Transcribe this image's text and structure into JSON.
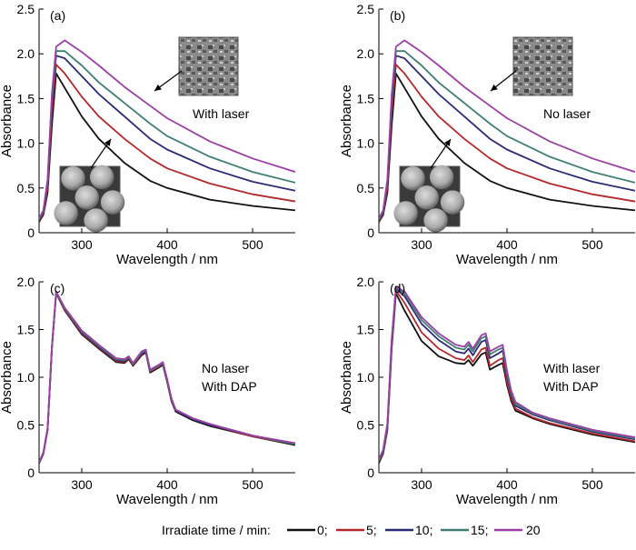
{
  "legend": {
    "title": "Irradiate time / min:",
    "entries": [
      {
        "label": "0;",
        "color": "#111111"
      },
      {
        "label": "5;",
        "color": "#b3282b"
      },
      {
        "label": "10;",
        "color": "#2b2a78"
      },
      {
        "label": "15;",
        "color": "#3f7f73"
      },
      {
        "label": "20",
        "color": "#9b3fa6"
      }
    ]
  },
  "chart_data": [
    {
      "panel": "(a)",
      "type": "line",
      "xlabel": "Wavelength / nm",
      "ylabel": "Absorbance",
      "xlim": [
        250,
        550
      ],
      "ylim": [
        0,
        2.5
      ],
      "xticks": [
        300,
        400,
        500
      ],
      "yticks": [
        0,
        0.5,
        1.0,
        1.5,
        2.0,
        2.5
      ],
      "annotations": [
        "With laser"
      ],
      "inset_images": [
        "sem-porous-surface",
        "sem-sphere-array"
      ],
      "x": [
        250,
        255,
        260,
        265,
        270,
        280,
        300,
        320,
        350,
        380,
        400,
        450,
        500,
        550
      ],
      "series": [
        {
          "name": "0",
          "color": "#111111",
          "values": [
            0.12,
            0.2,
            0.45,
            1.2,
            1.78,
            1.62,
            1.3,
            1.05,
            0.78,
            0.58,
            0.5,
            0.37,
            0.3,
            0.25
          ]
        },
        {
          "name": "5",
          "color": "#b3282b",
          "values": [
            0.13,
            0.22,
            0.5,
            1.35,
            1.88,
            1.78,
            1.52,
            1.3,
            1.05,
            0.83,
            0.72,
            0.55,
            0.43,
            0.35
          ]
        },
        {
          "name": "10",
          "color": "#2b2a78",
          "values": [
            0.14,
            0.23,
            0.55,
            1.45,
            1.98,
            1.95,
            1.75,
            1.55,
            1.3,
            1.05,
            0.93,
            0.72,
            0.57,
            0.47
          ]
        },
        {
          "name": "15",
          "color": "#3f7f73",
          "values": [
            0.15,
            0.24,
            0.58,
            1.5,
            2.03,
            2.03,
            1.87,
            1.68,
            1.45,
            1.22,
            1.08,
            0.85,
            0.68,
            0.56
          ]
        },
        {
          "name": "20",
          "color": "#9b3fa6",
          "values": [
            0.16,
            0.25,
            0.6,
            1.55,
            2.08,
            2.15,
            2.02,
            1.87,
            1.63,
            1.42,
            1.28,
            1.02,
            0.83,
            0.68
          ]
        }
      ]
    },
    {
      "panel": "(b)",
      "type": "line",
      "xlabel": "Wavelength / nm",
      "ylabel": "Absorbance",
      "xlim": [
        250,
        550
      ],
      "ylim": [
        0,
        2.5
      ],
      "xticks": [
        300,
        400,
        500
      ],
      "yticks": [
        0,
        0.5,
        1.0,
        1.5,
        2.0,
        2.5
      ],
      "annotations": [
        "No laser"
      ],
      "inset_images": [
        "sem-porous-surface",
        "sem-sphere-array"
      ],
      "x": [
        250,
        255,
        260,
        265,
        270,
        280,
        300,
        320,
        350,
        380,
        400,
        450,
        500,
        550
      ],
      "series": [
        {
          "name": "0",
          "color": "#111111",
          "values": [
            0.12,
            0.2,
            0.45,
            1.2,
            1.78,
            1.62,
            1.3,
            1.05,
            0.78,
            0.58,
            0.5,
            0.37,
            0.3,
            0.25
          ]
        },
        {
          "name": "5",
          "color": "#b3282b",
          "values": [
            0.13,
            0.22,
            0.5,
            1.35,
            1.88,
            1.78,
            1.52,
            1.3,
            1.05,
            0.83,
            0.72,
            0.55,
            0.43,
            0.35
          ]
        },
        {
          "name": "10",
          "color": "#2b2a78",
          "values": [
            0.14,
            0.23,
            0.55,
            1.45,
            1.98,
            1.95,
            1.75,
            1.55,
            1.3,
            1.05,
            0.93,
            0.72,
            0.57,
            0.47
          ]
        },
        {
          "name": "15",
          "color": "#3f7f73",
          "values": [
            0.15,
            0.24,
            0.58,
            1.5,
            2.03,
            2.03,
            1.87,
            1.68,
            1.45,
            1.22,
            1.08,
            0.85,
            0.68,
            0.56
          ]
        },
        {
          "name": "20",
          "color": "#9b3fa6",
          "values": [
            0.16,
            0.25,
            0.6,
            1.55,
            2.08,
            2.15,
            2.02,
            1.87,
            1.63,
            1.42,
            1.28,
            1.02,
            0.83,
            0.68
          ]
        }
      ]
    },
    {
      "panel": "(c)",
      "type": "line",
      "xlabel": "Wavelength / nm",
      "ylabel": "Absorbance",
      "xlim": [
        250,
        550
      ],
      "ylim": [
        0,
        2.0
      ],
      "xticks": [
        300,
        400,
        500
      ],
      "yticks": [
        0,
        0.5,
        1.0,
        1.5,
        2.0
      ],
      "annotations": [
        "No laser",
        "With DAP"
      ],
      "x": [
        250,
        255,
        260,
        265,
        270,
        280,
        300,
        320,
        340,
        350,
        355,
        360,
        370,
        375,
        380,
        390,
        395,
        400,
        405,
        410,
        430,
        450,
        500,
        550
      ],
      "series": [
        {
          "name": "0",
          "color": "#111111",
          "values": [
            0.1,
            0.2,
            0.45,
            1.3,
            1.88,
            1.7,
            1.45,
            1.3,
            1.16,
            1.15,
            1.19,
            1.12,
            1.23,
            1.26,
            1.05,
            1.1,
            1.13,
            0.95,
            0.75,
            0.64,
            0.55,
            0.49,
            0.38,
            0.29
          ]
        },
        {
          "name": "5",
          "color": "#b3282b",
          "values": [
            0.1,
            0.2,
            0.45,
            1.3,
            1.88,
            1.71,
            1.46,
            1.31,
            1.17,
            1.16,
            1.2,
            1.13,
            1.24,
            1.27,
            1.06,
            1.11,
            1.14,
            0.96,
            0.76,
            0.65,
            0.56,
            0.5,
            0.38,
            0.3
          ]
        },
        {
          "name": "10",
          "color": "#2b2a78",
          "values": [
            0.1,
            0.2,
            0.46,
            1.31,
            1.89,
            1.72,
            1.47,
            1.32,
            1.18,
            1.17,
            1.21,
            1.14,
            1.25,
            1.27,
            1.07,
            1.12,
            1.14,
            0.97,
            0.77,
            0.65,
            0.56,
            0.5,
            0.39,
            0.3
          ]
        },
        {
          "name": "15",
          "color": "#3f7f73",
          "values": [
            0.11,
            0.21,
            0.46,
            1.31,
            1.89,
            1.72,
            1.48,
            1.33,
            1.19,
            1.18,
            1.21,
            1.14,
            1.26,
            1.28,
            1.07,
            1.12,
            1.15,
            0.97,
            0.77,
            0.66,
            0.57,
            0.51,
            0.39,
            0.3
          ]
        },
        {
          "name": "20",
          "color": "#9b3fa6",
          "values": [
            0.11,
            0.21,
            0.47,
            1.32,
            1.9,
            1.73,
            1.49,
            1.34,
            1.2,
            1.19,
            1.22,
            1.15,
            1.27,
            1.29,
            1.08,
            1.13,
            1.16,
            0.98,
            0.78,
            0.66,
            0.57,
            0.51,
            0.39,
            0.31
          ]
        }
      ]
    },
    {
      "panel": "(d)",
      "type": "line",
      "xlabel": "Wavelength / nm",
      "ylabel": "Absorbance",
      "xlim": [
        250,
        550
      ],
      "ylim": [
        0,
        2.0
      ],
      "xticks": [
        300,
        400,
        500
      ],
      "yticks": [
        0,
        0.5,
        1.0,
        1.5,
        2.0
      ],
      "annotations": [
        "With laser",
        "With DAP"
      ],
      "x": [
        250,
        255,
        260,
        265,
        270,
        280,
        300,
        320,
        340,
        350,
        355,
        360,
        370,
        375,
        380,
        390,
        395,
        400,
        405,
        410,
        430,
        450,
        500,
        550
      ],
      "series": [
        {
          "name": "0",
          "color": "#111111",
          "values": [
            0.1,
            0.2,
            0.45,
            1.3,
            1.88,
            1.7,
            1.38,
            1.22,
            1.15,
            1.14,
            1.18,
            1.12,
            1.24,
            1.26,
            1.08,
            1.13,
            1.15,
            0.92,
            0.75,
            0.65,
            0.57,
            0.51,
            0.4,
            0.32
          ]
        },
        {
          "name": "5",
          "color": "#b3282b",
          "values": [
            0.11,
            0.21,
            0.47,
            1.33,
            1.91,
            1.78,
            1.47,
            1.3,
            1.2,
            1.18,
            1.23,
            1.16,
            1.29,
            1.31,
            1.12,
            1.18,
            1.2,
            0.95,
            0.78,
            0.67,
            0.58,
            0.52,
            0.41,
            0.33
          ]
        },
        {
          "name": "10",
          "color": "#2b2a78",
          "values": [
            0.12,
            0.22,
            0.49,
            1.36,
            1.93,
            1.85,
            1.56,
            1.39,
            1.27,
            1.25,
            1.3,
            1.23,
            1.37,
            1.39,
            1.2,
            1.25,
            1.28,
            1.01,
            0.82,
            0.7,
            0.61,
            0.55,
            0.43,
            0.35
          ]
        },
        {
          "name": "15",
          "color": "#3f7f73",
          "values": [
            0.13,
            0.23,
            0.5,
            1.38,
            1.94,
            1.88,
            1.6,
            1.43,
            1.31,
            1.29,
            1.34,
            1.27,
            1.41,
            1.43,
            1.24,
            1.29,
            1.31,
            1.04,
            0.84,
            0.72,
            0.62,
            0.56,
            0.44,
            0.36
          ]
        },
        {
          "name": "20",
          "color": "#9b3fa6",
          "values": [
            0.14,
            0.24,
            0.52,
            1.4,
            1.95,
            1.9,
            1.63,
            1.46,
            1.34,
            1.32,
            1.37,
            1.3,
            1.44,
            1.46,
            1.27,
            1.32,
            1.34,
            1.07,
            0.86,
            0.74,
            0.63,
            0.57,
            0.45,
            0.37
          ]
        }
      ]
    }
  ]
}
